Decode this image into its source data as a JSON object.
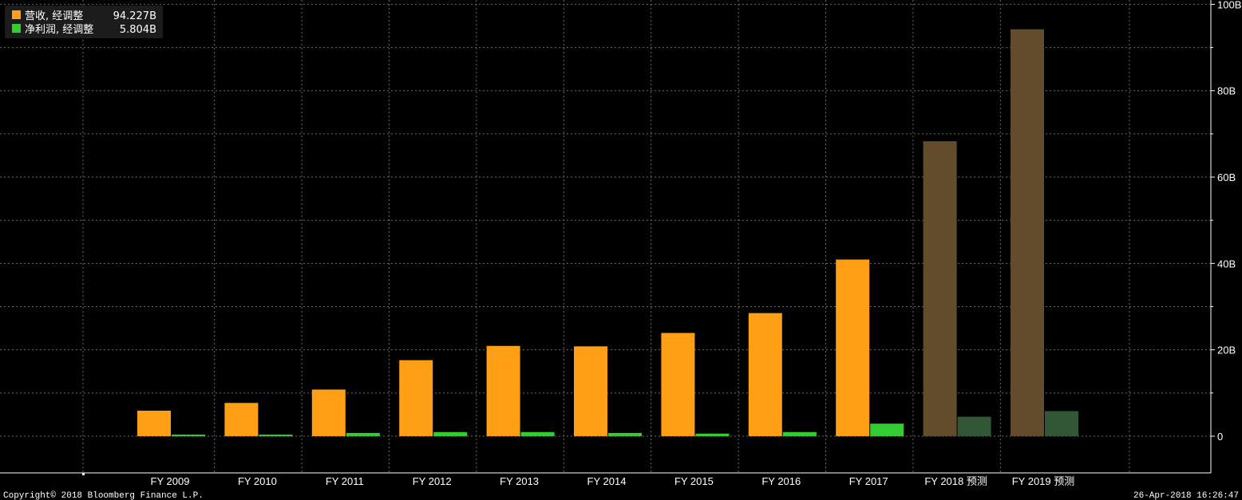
{
  "chart_data": {
    "type": "bar",
    "categories": [
      "FY 2009",
      "FY 2010",
      "FY 2011",
      "FY 2012",
      "FY 2013",
      "FY 2014",
      "FY 2015",
      "FY 2016",
      "FY 2017",
      "FY 2018 预测",
      "FY 2019 预测"
    ],
    "forecast_from_index": 9,
    "series": [
      {
        "name": "营收, 经调整",
        "last_value_label": "94.227B",
        "color": "#ff9f15",
        "forecast_color": "#634c2c",
        "values": [
          5.9,
          7.7,
          10.8,
          17.6,
          20.9,
          20.8,
          23.9,
          28.5,
          40.9,
          68.3,
          94.227
        ]
      },
      {
        "name": "净利润, 经调整",
        "last_value_label": "5.804B",
        "color": "#33cc33",
        "forecast_color": "#315737",
        "values": [
          0.35,
          0.36,
          0.75,
          0.95,
          0.95,
          0.75,
          0.6,
          0.95,
          2.9,
          4.5,
          5.804
        ]
      }
    ],
    "ylim": [
      -8.5,
      101
    ],
    "yticks": [
      0,
      20,
      40,
      60,
      80,
      100
    ],
    "ytick_labels": [
      "0",
      "20B",
      "40B",
      "60B",
      "80B",
      "100B"
    ],
    "y_axis_position": "right",
    "grid": true,
    "legend_position": "top-left"
  },
  "legend": {
    "items": [
      {
        "label": "营收, 经调整",
        "value": "94.227B",
        "color": "#ff9f15"
      },
      {
        "label": "净利润, 经调整",
        "value": "5.804B",
        "color": "#33cc33"
      }
    ]
  },
  "footer": {
    "copyright": "Copyright© 2018 Bloomberg Finance L.P.",
    "timestamp": "26-Apr-2018 16:26:47"
  }
}
